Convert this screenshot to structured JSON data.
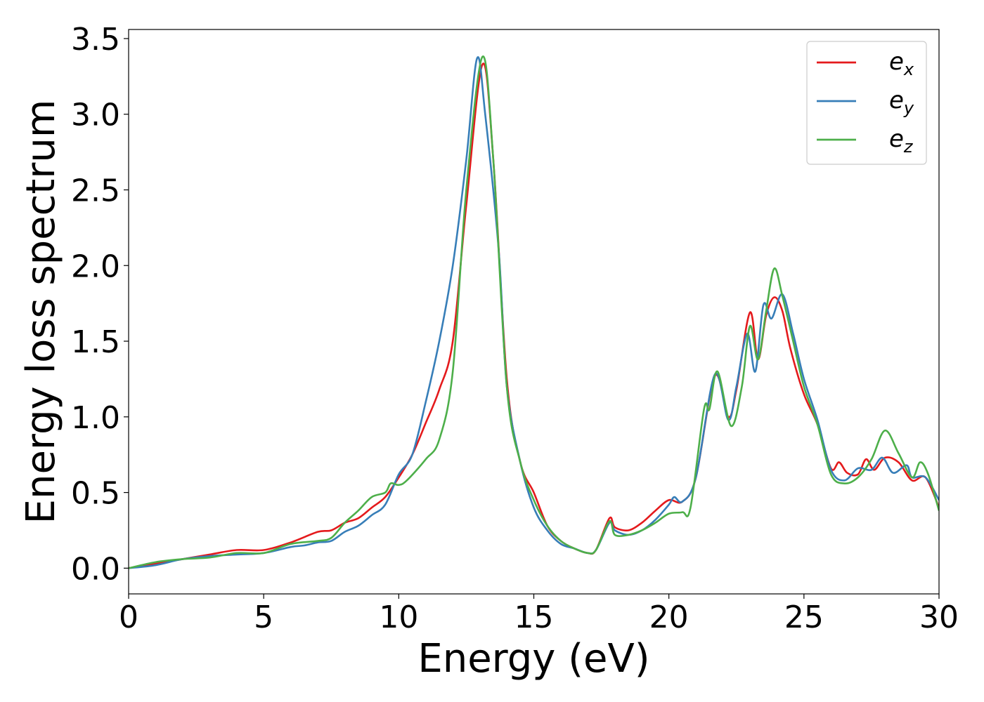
{
  "chart_data": {
    "type": "line",
    "title": "",
    "xlabel": "Energy (eV)",
    "ylabel": "Energy loss spectrum",
    "xlim": [
      0,
      30
    ],
    "ylim": [
      -0.17,
      3.56
    ],
    "xticks": [
      "0",
      "5",
      "10",
      "15",
      "20",
      "25",
      "30"
    ],
    "yticks": [
      "0.0",
      "0.5",
      "1.0",
      "1.5",
      "2.0",
      "2.5",
      "3.0",
      "3.5"
    ],
    "grid": false,
    "legend_position": "top-right",
    "colors": {
      "e_x": "#e41a1c",
      "e_y": "#377eb8",
      "e_z": "#4daf4a"
    },
    "series": [
      {
        "name": "e_x",
        "legend_base": "e",
        "legend_sub": "x",
        "points": [
          [
            0,
            0.0
          ],
          [
            1,
            0.03
          ],
          [
            2,
            0.06
          ],
          [
            3,
            0.09
          ],
          [
            4,
            0.12
          ],
          [
            5,
            0.12
          ],
          [
            6,
            0.17
          ],
          [
            7,
            0.24
          ],
          [
            7.5,
            0.25
          ],
          [
            8,
            0.3
          ],
          [
            8.5,
            0.33
          ],
          [
            9,
            0.4
          ],
          [
            9.5,
            0.47
          ],
          [
            10,
            0.6
          ],
          [
            10.5,
            0.75
          ],
          [
            11,
            0.96
          ],
          [
            11.5,
            1.18
          ],
          [
            12,
            1.5
          ],
          [
            12.5,
            2.4
          ],
          [
            13.1,
            3.33
          ],
          [
            13.5,
            2.7
          ],
          [
            14,
            1.25
          ],
          [
            14.5,
            0.7
          ],
          [
            15,
            0.5
          ],
          [
            15.5,
            0.28
          ],
          [
            16,
            0.18
          ],
          [
            16.5,
            0.13
          ],
          [
            17,
            0.1
          ],
          [
            17.3,
            0.12
          ],
          [
            17.8,
            0.33
          ],
          [
            18,
            0.27
          ],
          [
            18.5,
            0.25
          ],
          [
            19,
            0.3
          ],
          [
            19.5,
            0.38
          ],
          [
            20,
            0.45
          ],
          [
            20.5,
            0.44
          ],
          [
            21,
            0.6
          ],
          [
            21.7,
            1.27
          ],
          [
            22.2,
            1.0
          ],
          [
            22.5,
            1.18
          ],
          [
            23,
            1.69
          ],
          [
            23.3,
            1.38
          ],
          [
            23.6,
            1.67
          ],
          [
            23.9,
            1.79
          ],
          [
            24.2,
            1.7
          ],
          [
            24.5,
            1.45
          ],
          [
            25,
            1.15
          ],
          [
            25.5,
            0.95
          ],
          [
            26,
            0.66
          ],
          [
            26.3,
            0.7
          ],
          [
            26.6,
            0.63
          ],
          [
            27,
            0.62
          ],
          [
            27.3,
            0.72
          ],
          [
            27.6,
            0.65
          ],
          [
            28,
            0.73
          ],
          [
            28.5,
            0.7
          ],
          [
            29,
            0.58
          ],
          [
            29.5,
            0.6
          ],
          [
            30,
            0.4
          ]
        ]
      },
      {
        "name": "e_y",
        "legend_base": "e",
        "legend_sub": "y",
        "points": [
          [
            0,
            0.0
          ],
          [
            1,
            0.02
          ],
          [
            2,
            0.06
          ],
          [
            3,
            0.08
          ],
          [
            4,
            0.09
          ],
          [
            5,
            0.1
          ],
          [
            6,
            0.14
          ],
          [
            6.5,
            0.15
          ],
          [
            7,
            0.17
          ],
          [
            7.5,
            0.18
          ],
          [
            8,
            0.24
          ],
          [
            8.5,
            0.28
          ],
          [
            9,
            0.35
          ],
          [
            9.5,
            0.42
          ],
          [
            10,
            0.62
          ],
          [
            10.5,
            0.75
          ],
          [
            11,
            1.1
          ],
          [
            11.5,
            1.5
          ],
          [
            12,
            2.0
          ],
          [
            12.5,
            2.7
          ],
          [
            12.9,
            3.37
          ],
          [
            13.2,
            3.0
          ],
          [
            13.7,
            2.1
          ],
          [
            14,
            1.2
          ],
          [
            14.5,
            0.7
          ],
          [
            15,
            0.4
          ],
          [
            15.5,
            0.25
          ],
          [
            16,
            0.16
          ],
          [
            16.5,
            0.13
          ],
          [
            17,
            0.1
          ],
          [
            17.3,
            0.12
          ],
          [
            17.8,
            0.3
          ],
          [
            18,
            0.25
          ],
          [
            18.5,
            0.22
          ],
          [
            19,
            0.25
          ],
          [
            19.5,
            0.32
          ],
          [
            20,
            0.42
          ],
          [
            20.2,
            0.47
          ],
          [
            20.5,
            0.44
          ],
          [
            21,
            0.6
          ],
          [
            21.7,
            1.28
          ],
          [
            22.2,
            0.98
          ],
          [
            22.5,
            1.2
          ],
          [
            22.9,
            1.55
          ],
          [
            23.2,
            1.3
          ],
          [
            23.5,
            1.74
          ],
          [
            23.8,
            1.65
          ],
          [
            24.2,
            1.81
          ],
          [
            24.6,
            1.55
          ],
          [
            25,
            1.25
          ],
          [
            25.5,
            0.98
          ],
          [
            26,
            0.65
          ],
          [
            26.5,
            0.58
          ],
          [
            27,
            0.66
          ],
          [
            27.5,
            0.65
          ],
          [
            27.9,
            0.73
          ],
          [
            28.3,
            0.63
          ],
          [
            28.8,
            0.68
          ],
          [
            29,
            0.6
          ],
          [
            29.5,
            0.6
          ],
          [
            30,
            0.45
          ]
        ]
      },
      {
        "name": "e_z",
        "legend_base": "e",
        "legend_sub": "z",
        "points": [
          [
            0,
            0.0
          ],
          [
            1,
            0.04
          ],
          [
            2,
            0.06
          ],
          [
            3,
            0.07
          ],
          [
            4,
            0.1
          ],
          [
            5,
            0.1
          ],
          [
            6,
            0.16
          ],
          [
            7,
            0.18
          ],
          [
            7.5,
            0.2
          ],
          [
            8,
            0.3
          ],
          [
            8.5,
            0.38
          ],
          [
            9,
            0.47
          ],
          [
            9.5,
            0.5
          ],
          [
            9.7,
            0.56
          ],
          [
            10,
            0.55
          ],
          [
            10.3,
            0.58
          ],
          [
            11,
            0.72
          ],
          [
            11.5,
            0.85
          ],
          [
            12,
            1.3
          ],
          [
            12.5,
            2.5
          ],
          [
            13.1,
            3.38
          ],
          [
            13.5,
            2.7
          ],
          [
            14,
            1.2
          ],
          [
            14.5,
            0.7
          ],
          [
            15,
            0.45
          ],
          [
            15.5,
            0.28
          ],
          [
            16,
            0.18
          ],
          [
            16.5,
            0.13
          ],
          [
            17,
            0.1
          ],
          [
            17.3,
            0.12
          ],
          [
            17.8,
            0.31
          ],
          [
            18,
            0.22
          ],
          [
            18.5,
            0.22
          ],
          [
            19,
            0.25
          ],
          [
            19.5,
            0.3
          ],
          [
            20,
            0.36
          ],
          [
            20.5,
            0.37
          ],
          [
            20.8,
            0.4
          ],
          [
            21.3,
            1.05
          ],
          [
            21.5,
            1.05
          ],
          [
            21.8,
            1.3
          ],
          [
            22.3,
            0.94
          ],
          [
            22.7,
            1.2
          ],
          [
            23,
            1.6
          ],
          [
            23.3,
            1.38
          ],
          [
            23.6,
            1.7
          ],
          [
            23.9,
            1.98
          ],
          [
            24.2,
            1.8
          ],
          [
            24.6,
            1.5
          ],
          [
            25,
            1.2
          ],
          [
            25.5,
            0.95
          ],
          [
            26,
            0.62
          ],
          [
            26.5,
            0.56
          ],
          [
            27,
            0.6
          ],
          [
            27.5,
            0.72
          ],
          [
            28,
            0.91
          ],
          [
            28.5,
            0.76
          ],
          [
            29,
            0.6
          ],
          [
            29.3,
            0.7
          ],
          [
            29.6,
            0.62
          ],
          [
            30,
            0.38
          ]
        ]
      }
    ]
  }
}
